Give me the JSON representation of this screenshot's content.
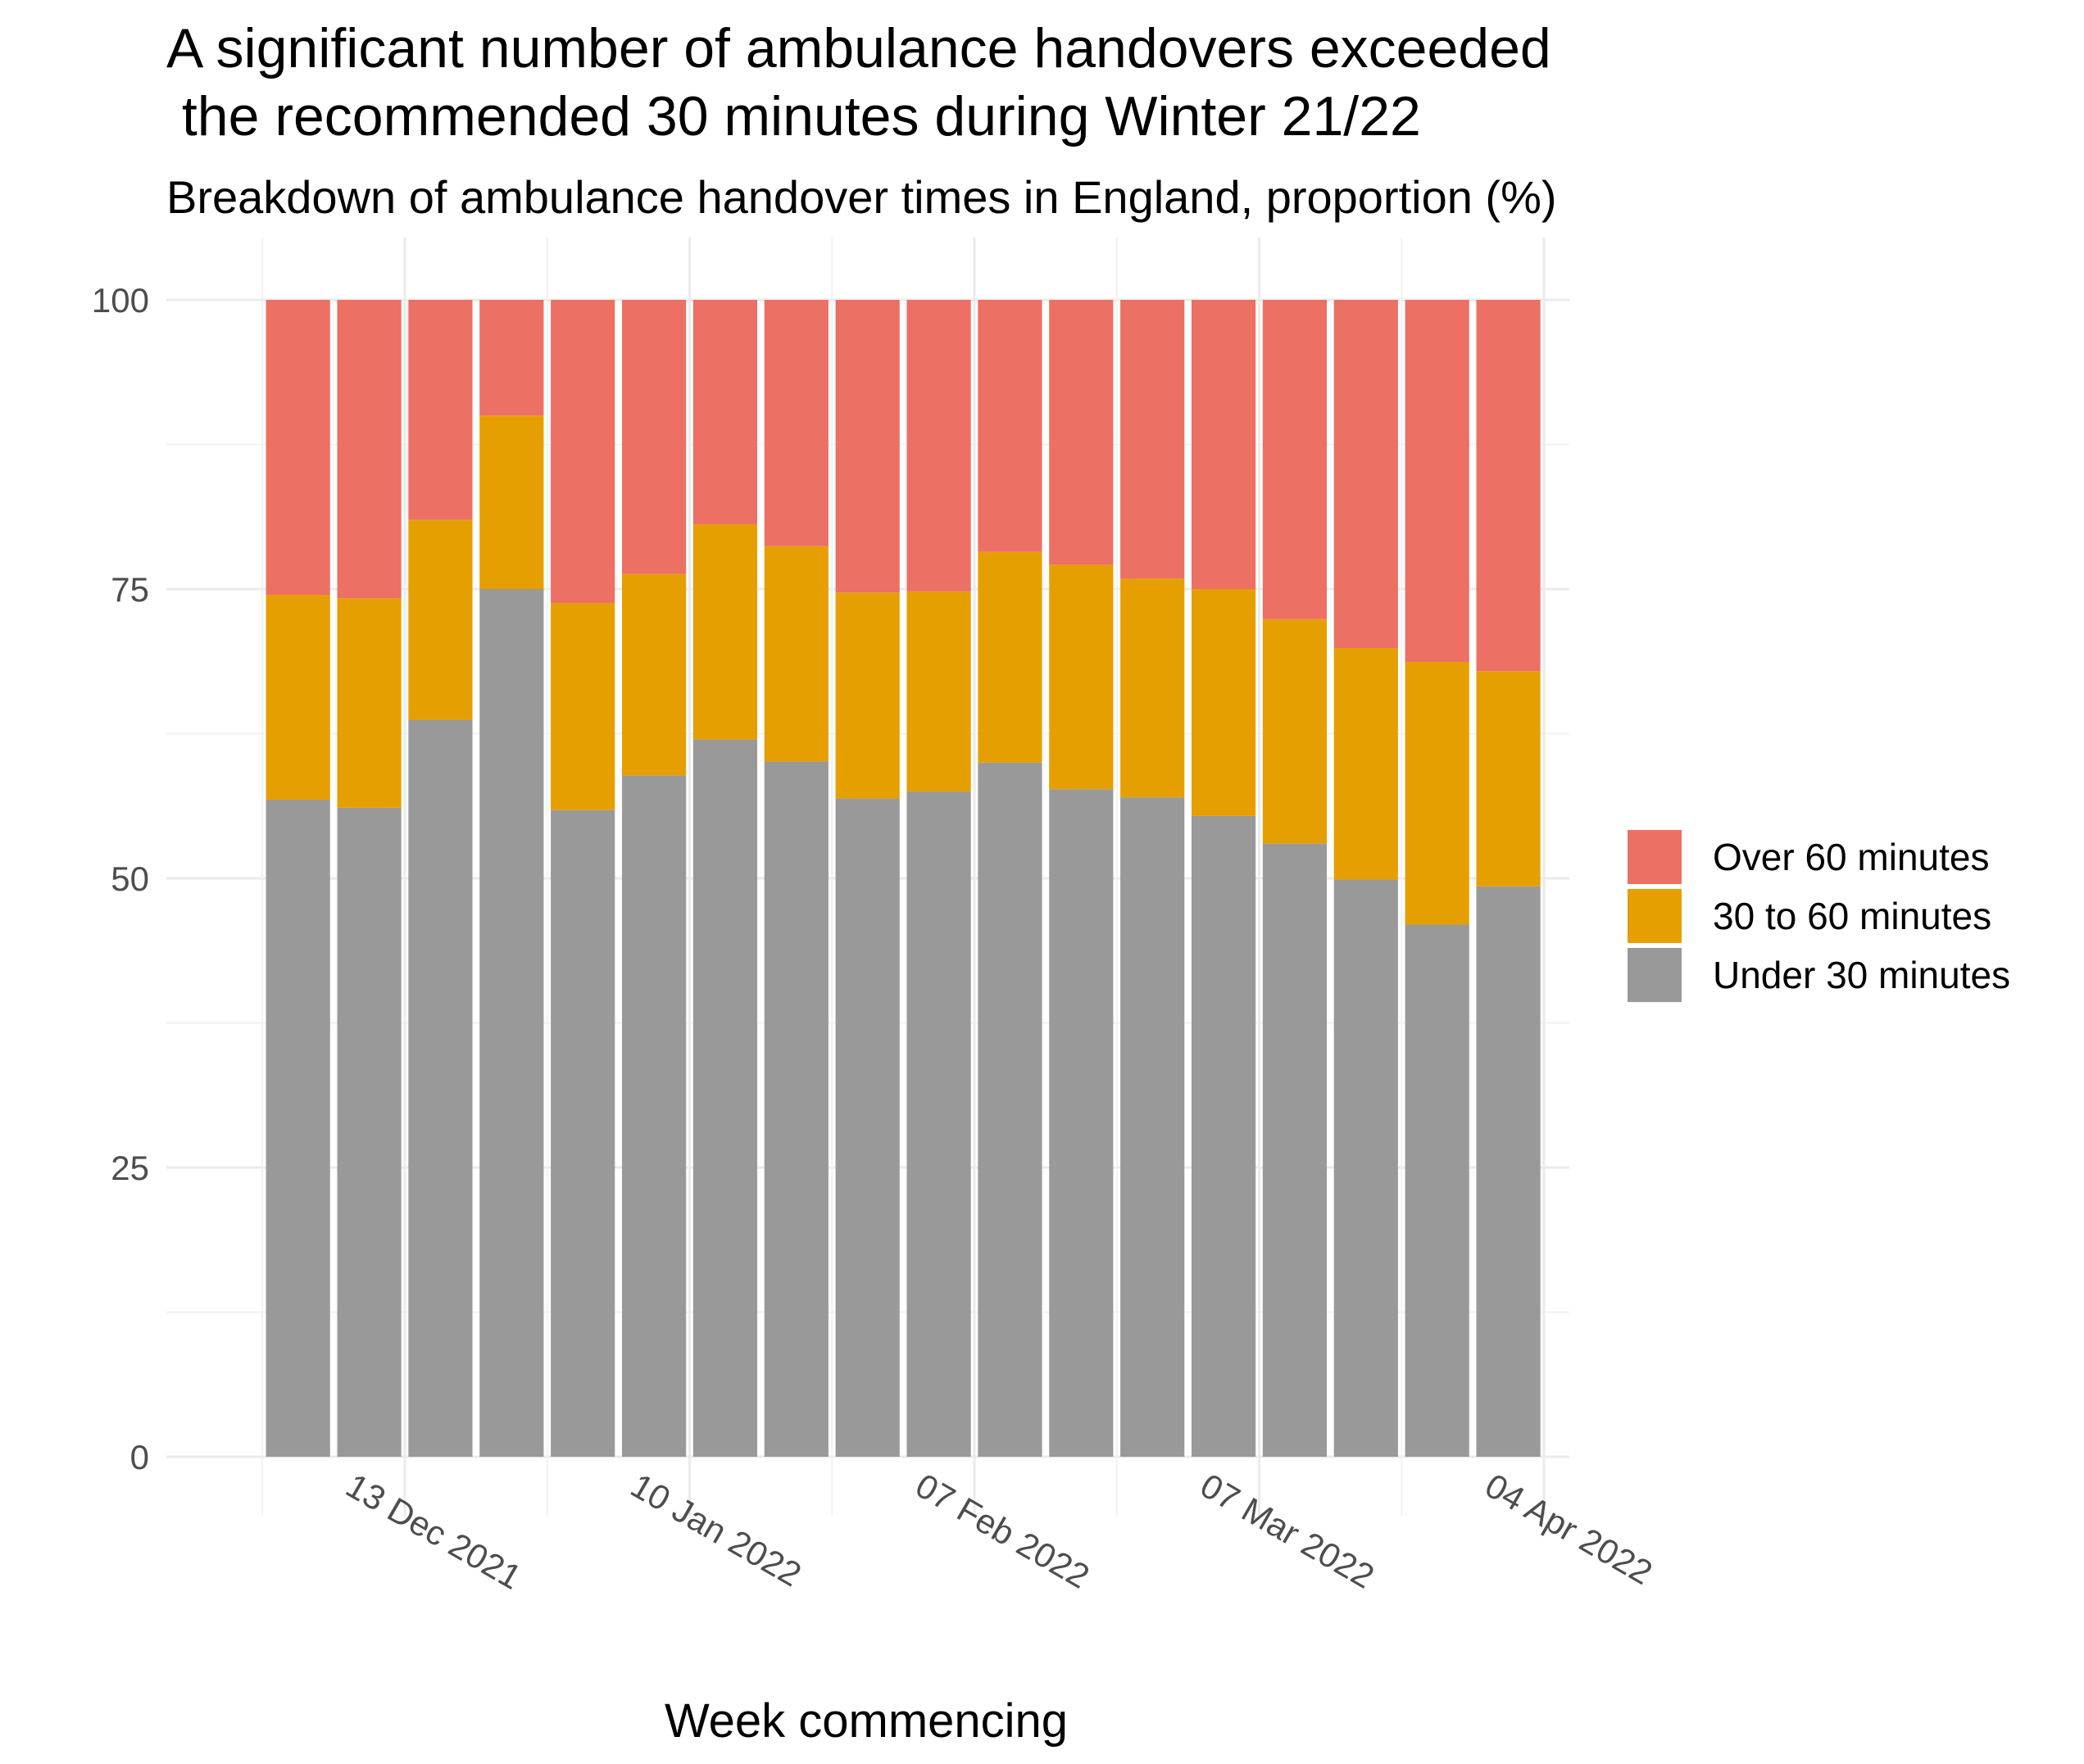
{
  "chart_data": {
    "type": "bar",
    "stacked": true,
    "title": [
      "A significant number of ambulance handovers exceeded",
      " the recommended 30 minutes during Winter 21/22"
    ],
    "subtitle": "Breakdown of ambulance handover times in England, proportion (%)",
    "xlabel": "Week commencing",
    "ylabel": "",
    "ylim": [
      0,
      100
    ],
    "yticks": [
      0,
      25,
      50,
      75,
      100
    ],
    "grid": true,
    "legend_position": "right",
    "x_tick_labels": [
      {
        "date": "2021-12-13",
        "label": "13 Dec 2021"
      },
      {
        "date": "2022-01-10",
        "label": "10 Jan 2022"
      },
      {
        "date": "2022-02-07",
        "label": "07 Feb 2022"
      },
      {
        "date": "2022-03-07",
        "label": "07 Mar 2022"
      },
      {
        "date": "2022-04-04",
        "label": "04 Apr 2022"
      }
    ],
    "weeks": [
      "2021-11-29",
      "2021-12-06",
      "2021-12-13",
      "2021-12-20",
      "2021-12-27",
      "2022-01-03",
      "2022-01-10",
      "2022-01-17",
      "2022-01-24",
      "2022-01-31",
      "2022-02-07",
      "2022-02-14",
      "2022-02-21",
      "2022-02-28",
      "2022-03-07",
      "2022-03-14",
      "2022-03-21",
      "2022-03-28"
    ],
    "series": [
      {
        "name": "Under 30 minutes",
        "color": "#999999",
        "values": [
          56.8,
          56.1,
          63.7,
          75.0,
          55.9,
          58.9,
          62.0,
          60.1,
          56.9,
          57.5,
          60.0,
          57.7,
          57.0,
          55.4,
          53.0,
          49.9,
          46.0,
          49.3
        ]
      },
      {
        "name": "30 to 60 minutes",
        "color": "#E69F00",
        "values": [
          17.7,
          18.1,
          17.3,
          15.0,
          17.9,
          17.4,
          18.6,
          18.6,
          17.8,
          17.3,
          18.2,
          19.4,
          18.9,
          19.6,
          19.4,
          20.0,
          22.7,
          18.6
        ]
      },
      {
        "name": "Over 60 minutes",
        "color": "#EC7064",
        "values": [
          25.5,
          25.8,
          19.0,
          10.0,
          26.2,
          23.7,
          19.4,
          21.3,
          25.3,
          25.2,
          21.8,
          22.9,
          24.1,
          25.0,
          27.6,
          30.1,
          31.3,
          32.1
        ]
      }
    ],
    "legend_order": [
      "Over 60 minutes",
      "30 to 60 minutes",
      "Under 30 minutes"
    ]
  }
}
